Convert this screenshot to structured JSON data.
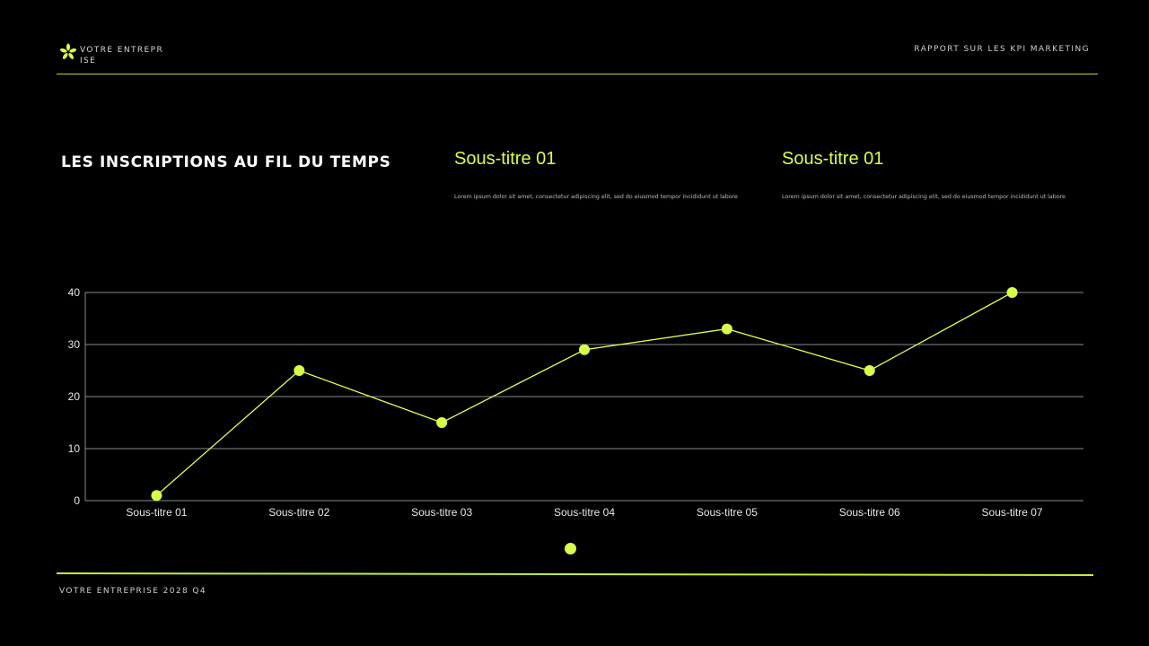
{
  "header": {
    "company": "VOTRE ENTREPRISE",
    "report_title": "RAPPORT SUR LES KPI MARKETING",
    "logo_icon": "asterisk-flower-icon"
  },
  "main": {
    "title": "LES INSCRIPTIONS AU FIL DU TEMPS",
    "subsections": [
      {
        "heading": "Sous-titre 01",
        "text": "Lorem ipsum dolor sit amet, consectetur adipiscing elit, sed do eiusmod tempor incididunt ut labore"
      },
      {
        "heading": "Sous-titre 01",
        "text": "Lorem ipsum dolor sit amet, consectetur adipiscing elit, sed do eiusmod tempor incididunt ut labore"
      }
    ]
  },
  "footer": {
    "text": "VOTRE ENTREPRISE 2028 Q4"
  },
  "colors": {
    "accent": "#d8ff4a",
    "background": "#000000",
    "grid": "#8a8a8a"
  },
  "chart_data": {
    "type": "line",
    "categories": [
      "Sous-titre 01",
      "Sous-titre 02",
      "Sous-titre 03",
      "Sous-titre 04",
      "Sous-titre 05",
      "Sous-titre 06",
      "Sous-titre 07"
    ],
    "series": [
      {
        "values": [
          1,
          25,
          15,
          29,
          33,
          25,
          40
        ]
      }
    ],
    "yticks": [
      0,
      10,
      20,
      30,
      40
    ],
    "ylim": [
      0,
      40
    ],
    "grid": true,
    "legend": "bottom-center"
  }
}
